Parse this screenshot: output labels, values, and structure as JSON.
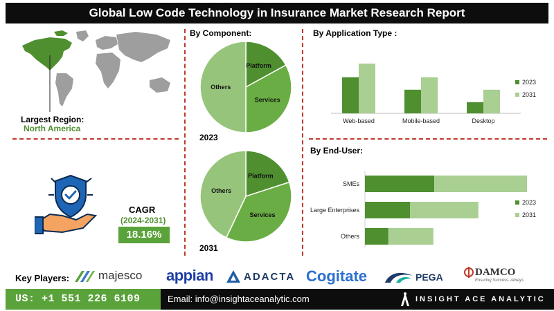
{
  "title": "Global  Low Code Technology in Insurance Market Research Report",
  "region": {
    "label": "Largest Region:",
    "value": "North America"
  },
  "cagr": {
    "label": "CAGR",
    "period": "(2024-2031)",
    "value": "18.16%"
  },
  "chart_data": [
    {
      "type": "pie",
      "title": "By Component:",
      "caption": "2023",
      "labels": [
        "Platform",
        "Services",
        "Others"
      ],
      "values": [
        17,
        33,
        50
      ],
      "colors": [
        "#4f8f30",
        "#6aad44",
        "#97c47b"
      ]
    },
    {
      "type": "pie",
      "title": "",
      "caption": "2031",
      "labels": [
        "Platform",
        "Services",
        "Others"
      ],
      "values": [
        20,
        37,
        43
      ],
      "colors": [
        "#4f8f30",
        "#6aad44",
        "#97c47b"
      ]
    },
    {
      "type": "bar",
      "title": "By  Application Type :",
      "categories": [
        "Web-based",
        "Mobile-based",
        "Desktop"
      ],
      "series": [
        {
          "name": "2023",
          "values": [
            58,
            38,
            18
          ],
          "color": "#4f8f30"
        },
        {
          "name": "2031",
          "values": [
            80,
            58,
            38
          ],
          "color": "#a9cf92"
        }
      ],
      "ylim": [
        0,
        100
      ]
    },
    {
      "type": "bar",
      "orientation": "horizontal",
      "stacked": true,
      "title": "By End-User:",
      "categories": [
        "SMEs",
        "Large Enterprises",
        "Others"
      ],
      "series": [
        {
          "name": "2023",
          "values": [
            77,
            50,
            26
          ],
          "color": "#4f8f30"
        },
        {
          "name": "2031",
          "values": [
            103,
            76,
            50
          ],
          "color": "#a9cf92"
        }
      ],
      "xlim": [
        0,
        200
      ]
    }
  ],
  "key_players": {
    "label": "Key Players:",
    "names": [
      "majesco",
      "appian",
      "ADACTA",
      "Cogitate",
      "PEGA",
      "DAMCO"
    ],
    "damco_tagline": "Ensuring Success. Always"
  },
  "footer": {
    "phone": "US: +1 551 226 6109",
    "email": "Email: info@insightaceanalytic.com",
    "brand": "INSIGHT ACE ANALYTIC"
  },
  "colors": {
    "accent": "#5aa23a",
    "dark": "#0d0d0d",
    "divider": "#c0392b"
  }
}
